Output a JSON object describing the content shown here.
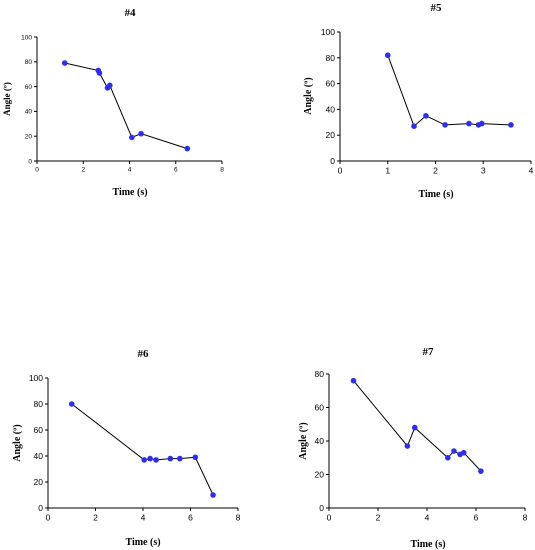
{
  "chart_data": [
    {
      "type": "line",
      "title": "#4",
      "xlabel": "Time (s)",
      "ylabel": "Angle (º)",
      "xlim": [
        0,
        8
      ],
      "ylim": [
        0,
        100
      ],
      "xticks": [
        "0",
        "2",
        "4",
        "6",
        "8"
      ],
      "yticks": [
        "0",
        "20",
        "40",
        "60",
        "80",
        "100"
      ],
      "points": [
        {
          "x": 1.2,
          "y": 79
        },
        {
          "x": 2.65,
          "y": 73
        },
        {
          "x": 2.7,
          "y": 71
        },
        {
          "x": 3.05,
          "y": 59
        },
        {
          "x": 3.15,
          "y": 61
        },
        {
          "x": 4.1,
          "y": 19
        },
        {
          "x": 4.5,
          "y": 22
        },
        {
          "x": 6.5,
          "y": 10
        }
      ],
      "grid": false,
      "marker_color": "#2f2fe8",
      "line_color": "#000000"
    },
    {
      "type": "line",
      "title": "#5",
      "xlabel": "Time (s)",
      "ylabel": "Angle (º)",
      "xlim": [
        0,
        4
      ],
      "ylim": [
        0,
        100
      ],
      "xticks": [
        "0",
        "1",
        "2",
        "3",
        "4"
      ],
      "yticks": [
        "0",
        "20",
        "40",
        "60",
        "80",
        "100"
      ],
      "points": [
        {
          "x": 1.0,
          "y": 82
        },
        {
          "x": 1.55,
          "y": 27
        },
        {
          "x": 1.8,
          "y": 35
        },
        {
          "x": 2.2,
          "y": 28
        },
        {
          "x": 2.7,
          "y": 29
        },
        {
          "x": 2.9,
          "y": 28
        },
        {
          "x": 2.97,
          "y": 29
        },
        {
          "x": 3.58,
          "y": 28
        }
      ],
      "grid": false,
      "marker_color": "#2f2fe8",
      "line_color": "#000000"
    },
    {
      "type": "line",
      "title": "#6",
      "xlabel": "Time (s)",
      "ylabel": "Angle (º)",
      "xlim": [
        0,
        8
      ],
      "ylim": [
        0,
        100
      ],
      "xticks": [
        "0",
        "2",
        "4",
        "6",
        "8"
      ],
      "yticks": [
        "0",
        "20",
        "40",
        "60",
        "80",
        "100"
      ],
      "points": [
        {
          "x": 1.0,
          "y": 80
        },
        {
          "x": 4.05,
          "y": 37
        },
        {
          "x": 4.3,
          "y": 38
        },
        {
          "x": 4.55,
          "y": 37
        },
        {
          "x": 5.15,
          "y": 38
        },
        {
          "x": 5.55,
          "y": 38
        },
        {
          "x": 6.2,
          "y": 39
        },
        {
          "x": 6.95,
          "y": 10
        }
      ],
      "grid": false,
      "marker_color": "#2f2fe8",
      "line_color": "#000000"
    },
    {
      "type": "line",
      "title": "#7",
      "xlabel": "Time (s)",
      "ylabel": "Angle (º)",
      "xlim": [
        0,
        8
      ],
      "ylim": [
        0,
        80
      ],
      "xticks": [
        "0",
        "2",
        "4",
        "6",
        "8"
      ],
      "yticks": [
        "0",
        "20",
        "40",
        "60",
        "80"
      ],
      "points": [
        {
          "x": 1.0,
          "y": 76
        },
        {
          "x": 3.2,
          "y": 37
        },
        {
          "x": 3.5,
          "y": 48
        },
        {
          "x": 4.85,
          "y": 30
        },
        {
          "x": 5.1,
          "y": 34
        },
        {
          "x": 5.35,
          "y": 32
        },
        {
          "x": 5.5,
          "y": 33
        },
        {
          "x": 6.2,
          "y": 22
        }
      ],
      "grid": false,
      "marker_color": "#2f2fe8",
      "line_color": "#000000"
    }
  ]
}
